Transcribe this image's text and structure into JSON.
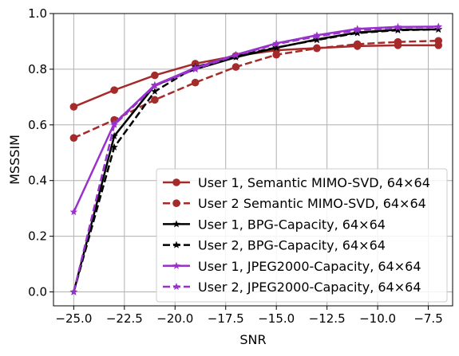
{
  "chart_data": {
    "type": "line",
    "title": "",
    "xlabel": "SNR",
    "ylabel": "MSSSIM",
    "xlim": [
      -26.0,
      -6.3
    ],
    "ylim": [
      -0.05,
      1.0
    ],
    "x_ticks": [
      -25.0,
      -22.5,
      -20.0,
      -17.5,
      -15.0,
      -12.5,
      -10.0,
      -7.5
    ],
    "x_tick_labels": [
      "−25.0",
      "−22.5",
      "−20.0",
      "−17.5",
      "−15.0",
      "−12.5",
      "−10.0",
      "−7.5"
    ],
    "y_ticks": [
      0.0,
      0.2,
      0.4,
      0.6,
      0.8,
      1.0
    ],
    "y_tick_labels": [
      "0.0",
      "0.2",
      "0.4",
      "0.6",
      "0.8",
      "1.0"
    ],
    "grid": true,
    "legend_position": "lower-right",
    "x": [
      -25,
      -23,
      -21,
      -19,
      -17,
      -15,
      -13,
      -11,
      -9,
      -7
    ],
    "series": [
      {
        "name": "User 1, Semantic MIMO-SVD, 64×64",
        "color": "#a52a2a",
        "style": "solid",
        "marker": "circle",
        "values": [
          0.665,
          0.725,
          0.778,
          0.82,
          0.848,
          0.868,
          0.876,
          0.883,
          0.886,
          0.886
        ]
      },
      {
        "name": "User 2 Semantic MIMO-SVD, 64×64",
        "color": "#a52a2a",
        "style": "dashed",
        "marker": "circle",
        "values": [
          0.553,
          0.618,
          0.69,
          0.752,
          0.808,
          0.852,
          0.875,
          0.89,
          0.898,
          0.902
        ]
      },
      {
        "name": "User 1, BPG-Capacity, 64×64",
        "color": "#000000",
        "style": "solid",
        "marker": "star",
        "values": [
          0.0,
          0.56,
          0.742,
          0.8,
          0.843,
          0.877,
          0.907,
          0.932,
          0.942,
          0.943
        ]
      },
      {
        "name": "User 2, BPG-Capacity, 64×64",
        "color": "#000000",
        "style": "dashed",
        "marker": "star",
        "values": [
          0.0,
          0.52,
          0.72,
          0.808,
          0.848,
          0.878,
          0.905,
          0.93,
          0.94,
          0.943
        ]
      },
      {
        "name": "User 1, JPEG2000-Capacity, 64×64",
        "color": "#9932cc",
        "style": "solid",
        "marker": "star",
        "values": [
          0.287,
          0.605,
          0.743,
          0.805,
          0.852,
          0.893,
          0.922,
          0.945,
          0.952,
          0.953
        ]
      },
      {
        "name": "User 2, JPEG2000-Capacity, 64×64",
        "color": "#9932cc",
        "style": "dashed",
        "marker": "star",
        "values": [
          0.0,
          0.6,
          0.74,
          0.8,
          0.85,
          0.89,
          0.918,
          0.94,
          0.95,
          0.952
        ]
      }
    ]
  }
}
